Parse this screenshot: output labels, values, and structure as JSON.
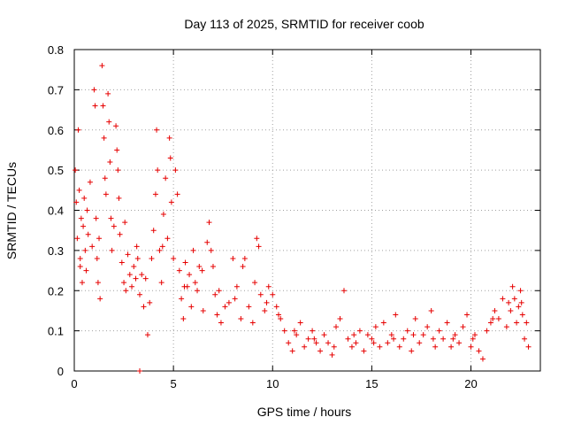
{
  "chart_data": {
    "type": "scatter",
    "title": "Day 113 of 2025, SRMTID for receiver coob",
    "xlabel": "GPS time / hours",
    "ylabel": "SRMTID / TECUs",
    "xlim": [
      0,
      23.5
    ],
    "ylim": [
      0,
      0.8
    ],
    "x_ticks": [
      0,
      5,
      10,
      15,
      20
    ],
    "x_tick_labels": [
      "0",
      "5",
      "10",
      "15",
      "20"
    ],
    "y_ticks": [
      0,
      0.1,
      0.2,
      0.3,
      0.4,
      0.5,
      0.6,
      0.7,
      0.8
    ],
    "y_tick_labels": [
      "0",
      "0.1",
      "0.2",
      "0.3",
      "0.4",
      "0.5",
      "0.6",
      "0.7",
      "0.8"
    ],
    "grid": true,
    "marker": "+",
    "color": "#e60000",
    "series": [
      {
        "name": "SRMTID",
        "points": [
          [
            0.05,
            0.5
          ],
          [
            0.1,
            0.42
          ],
          [
            0.15,
            0.33
          ],
          [
            0.2,
            0.6
          ],
          [
            0.25,
            0.45
          ],
          [
            0.3,
            0.28
          ],
          [
            0.35,
            0.38
          ],
          [
            0.4,
            0.22
          ],
          [
            0.45,
            0.36
          ],
          [
            0.5,
            0.43
          ],
          [
            0.55,
            0.3
          ],
          [
            0.6,
            0.25
          ],
          [
            0.65,
            0.4
          ],
          [
            0.7,
            0.34
          ],
          [
            0.8,
            0.47
          ],
          [
            0.9,
            0.31
          ],
          [
            1.0,
            0.7
          ],
          [
            1.05,
            0.66
          ],
          [
            1.1,
            0.38
          ],
          [
            1.15,
            0.28
          ],
          [
            1.2,
            0.22
          ],
          [
            1.3,
            0.18
          ],
          [
            1.4,
            0.76
          ],
          [
            1.45,
            0.66
          ],
          [
            1.5,
            0.58
          ],
          [
            1.55,
            0.48
          ],
          [
            1.6,
            0.44
          ],
          [
            1.7,
            0.69
          ],
          [
            1.75,
            0.62
          ],
          [
            1.8,
            0.52
          ],
          [
            1.85,
            0.38
          ],
          [
            1.9,
            0.3
          ],
          [
            2.0,
            0.36
          ],
          [
            2.1,
            0.61
          ],
          [
            2.15,
            0.55
          ],
          [
            2.2,
            0.5
          ],
          [
            2.25,
            0.43
          ],
          [
            2.3,
            0.34
          ],
          [
            2.4,
            0.27
          ],
          [
            2.5,
            0.22
          ],
          [
            2.6,
            0.2
          ],
          [
            2.7,
            0.29
          ],
          [
            2.8,
            0.24
          ],
          [
            2.9,
            0.21
          ],
          [
            3.0,
            0.26
          ],
          [
            3.1,
            0.23
          ],
          [
            3.2,
            0.28
          ],
          [
            3.3,
            0.19
          ],
          [
            3.4,
            0.24
          ],
          [
            3.5,
            0.16
          ],
          [
            3.6,
            0.23
          ],
          [
            3.7,
            0.09
          ],
          [
            3.8,
            0.17
          ],
          [
            3.9,
            0.28
          ],
          [
            4.0,
            0.35
          ],
          [
            4.1,
            0.44
          ],
          [
            4.15,
            0.6
          ],
          [
            4.2,
            0.5
          ],
          [
            4.3,
            0.3
          ],
          [
            4.4,
            0.22
          ],
          [
            4.5,
            0.39
          ],
          [
            4.6,
            0.48
          ],
          [
            4.7,
            0.33
          ],
          [
            4.8,
            0.58
          ],
          [
            4.85,
            0.53
          ],
          [
            4.9,
            0.42
          ],
          [
            5.0,
            0.28
          ],
          [
            5.1,
            0.5
          ],
          [
            5.2,
            0.44
          ],
          [
            5.3,
            0.25
          ],
          [
            5.4,
            0.18
          ],
          [
            5.5,
            0.13
          ],
          [
            5.6,
            0.27
          ],
          [
            5.7,
            0.21
          ],
          [
            5.8,
            0.24
          ],
          [
            5.9,
            0.16
          ],
          [
            6.0,
            0.3
          ],
          [
            6.1,
            0.22
          ],
          [
            6.2,
            0.2
          ],
          [
            6.3,
            0.26
          ],
          [
            6.5,
            0.15
          ],
          [
            6.7,
            0.32
          ],
          [
            6.8,
            0.37
          ],
          [
            6.9,
            0.3
          ],
          [
            7.0,
            0.26
          ],
          [
            7.1,
            0.19
          ],
          [
            7.2,
            0.14
          ],
          [
            7.4,
            0.12
          ],
          [
            7.6,
            0.16
          ],
          [
            7.8,
            0.17
          ],
          [
            8.0,
            0.28
          ],
          [
            8.2,
            0.21
          ],
          [
            8.4,
            0.13
          ],
          [
            8.5,
            0.26
          ],
          [
            8.6,
            0.28
          ],
          [
            8.8,
            0.16
          ],
          [
            9.0,
            0.12
          ],
          [
            9.2,
            0.33
          ],
          [
            9.3,
            0.31
          ],
          [
            9.4,
            0.19
          ],
          [
            9.6,
            0.15
          ],
          [
            9.8,
            0.21
          ],
          [
            10.0,
            0.19
          ],
          [
            10.2,
            0.16
          ],
          [
            10.4,
            0.13
          ],
          [
            10.6,
            0.1
          ],
          [
            10.8,
            0.07
          ],
          [
            11.0,
            0.05
          ],
          [
            11.2,
            0.09
          ],
          [
            11.4,
            0.12
          ],
          [
            11.6,
            0.06
          ],
          [
            11.8,
            0.08
          ],
          [
            12.0,
            0.1
          ],
          [
            12.2,
            0.07
          ],
          [
            12.4,
            0.05
          ],
          [
            12.6,
            0.09
          ],
          [
            12.8,
            0.07
          ],
          [
            13.0,
            0.04
          ],
          [
            13.2,
            0.11
          ],
          [
            13.4,
            0.13
          ],
          [
            13.6,
            0.2
          ],
          [
            13.8,
            0.08
          ],
          [
            14.0,
            0.06
          ],
          [
            14.2,
            0.07
          ],
          [
            14.4,
            0.1
          ],
          [
            14.6,
            0.05
          ],
          [
            14.8,
            0.09
          ],
          [
            15.0,
            0.08
          ],
          [
            15.2,
            0.11
          ],
          [
            15.4,
            0.06
          ],
          [
            15.6,
            0.12
          ],
          [
            15.8,
            0.07
          ],
          [
            16.0,
            0.09
          ],
          [
            16.2,
            0.14
          ],
          [
            16.4,
            0.06
          ],
          [
            16.6,
            0.08
          ],
          [
            16.8,
            0.1
          ],
          [
            17.0,
            0.05
          ],
          [
            17.2,
            0.13
          ],
          [
            17.4,
            0.07
          ],
          [
            17.6,
            0.09
          ],
          [
            17.8,
            0.11
          ],
          [
            18.0,
            0.15
          ],
          [
            18.2,
            0.06
          ],
          [
            18.4,
            0.1
          ],
          [
            18.6,
            0.08
          ],
          [
            18.8,
            0.12
          ],
          [
            19.0,
            0.06
          ],
          [
            19.2,
            0.09
          ],
          [
            19.4,
            0.07
          ],
          [
            19.6,
            0.11
          ],
          [
            19.8,
            0.14
          ],
          [
            20.0,
            0.06
          ],
          [
            20.2,
            0.09
          ],
          [
            20.4,
            0.05
          ],
          [
            20.6,
            0.03
          ],
          [
            20.8,
            0.1
          ],
          [
            21.0,
            0.12
          ],
          [
            21.2,
            0.15
          ],
          [
            21.4,
            0.13
          ],
          [
            21.6,
            0.18
          ],
          [
            21.8,
            0.11
          ],
          [
            22.0,
            0.15
          ],
          [
            22.1,
            0.21
          ],
          [
            22.2,
            0.18
          ],
          [
            22.3,
            0.12
          ],
          [
            22.4,
            0.16
          ],
          [
            22.5,
            0.2
          ],
          [
            22.6,
            0.14
          ],
          [
            22.7,
            0.08
          ],
          [
            22.8,
            0.12
          ],
          [
            22.9,
            0.06
          ],
          [
            3.3,
            0.0
          ],
          [
            0.3,
            0.26
          ],
          [
            1.25,
            0.33
          ],
          [
            2.55,
            0.37
          ],
          [
            3.15,
            0.31
          ],
          [
            4.45,
            0.31
          ],
          [
            5.55,
            0.21
          ],
          [
            6.45,
            0.25
          ],
          [
            7.3,
            0.2
          ],
          [
            8.1,
            0.18
          ],
          [
            9.1,
            0.22
          ],
          [
            9.7,
            0.17
          ],
          [
            10.3,
            0.14
          ],
          [
            11.1,
            0.1
          ],
          [
            12.1,
            0.08
          ],
          [
            13.1,
            0.06
          ],
          [
            14.1,
            0.09
          ],
          [
            15.1,
            0.07
          ],
          [
            16.1,
            0.08
          ],
          [
            17.1,
            0.09
          ],
          [
            18.1,
            0.08
          ],
          [
            19.1,
            0.08
          ],
          [
            20.1,
            0.08
          ],
          [
            21.1,
            0.13
          ],
          [
            21.9,
            0.17
          ],
          [
            22.55,
            0.17
          ]
        ]
      }
    ]
  }
}
